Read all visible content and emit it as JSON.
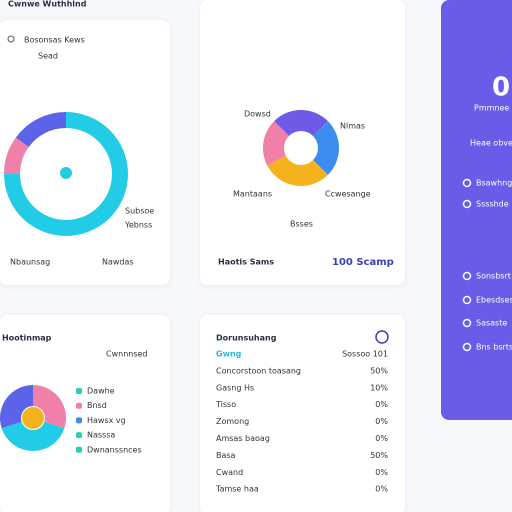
{
  "header": {
    "title": "Cwnwe Wuthhlnd"
  },
  "card1": {
    "title": "Bosonsas Kews",
    "subtitle": "Sead",
    "donut": [
      {
        "value": 75,
        "color": "#22cbe6"
      },
      {
        "value": 10,
        "color": "#f07fa9"
      },
      {
        "value": 15,
        "color": "#5b63e8"
      }
    ],
    "labels": [
      "Subsoe",
      "Yebnss"
    ],
    "footer_left": "Nbaunsag",
    "footer_right": "Nawdas"
  },
  "card2": {
    "donut": [
      {
        "value": 25,
        "color": "#6d5ae6"
      },
      {
        "value": 25,
        "color": "#3d8cf0"
      },
      {
        "value": 30,
        "color": "#f6b21c"
      },
      {
        "value": 20,
        "color": "#f07fa9"
      }
    ],
    "labels": [
      "Dowsd",
      "Nlmas",
      "Mantaans",
      "Ccwesange",
      "Bsses"
    ],
    "footer_left": "Haotis Sams",
    "footer_right": "100 Scamp"
  },
  "panel": {
    "big": "0",
    "title": "Pmmnee",
    "line": "Heae obvessy",
    "items": [
      "Bsawhng Hs",
      "Sssshde",
      "Sonsbsrt bs",
      "Ebesdsesy",
      "Sasaste",
      "Bns bsrtsa"
    ]
  },
  "card3": {
    "title": "Hootinmap",
    "action": "Cwnnnsed",
    "donut": [
      {
        "value": 30,
        "color": "#f07fa9"
      },
      {
        "value": 40,
        "color": "#22cbe6"
      },
      {
        "value": 30,
        "color": "#5b63e8"
      }
    ],
    "legend": [
      {
        "name": "Dawhe",
        "color": "#27cfb0"
      },
      {
        "name": "Bnsd",
        "color": "#f07fa9"
      },
      {
        "name": "Hawsx vg",
        "color": "#3d8cf0"
      },
      {
        "name": "Nasssa",
        "color": "#27cfb0"
      },
      {
        "name": "Dwnanssnces",
        "color": "#27cfb0"
      }
    ]
  },
  "card4": {
    "title": "Dorunsuhang",
    "rows": [
      [
        "Gwng",
        "Sossoo 101"
      ],
      [
        "Concorstoon toasang",
        "50%"
      ],
      [
        "Gasng Hs",
        "10%"
      ],
      [
        "Tisso",
        "0%"
      ],
      [
        "Zomong",
        "0%"
      ],
      [
        "Amsas baoag",
        "0%"
      ],
      [
        "Basa",
        "50%"
      ],
      [
        "Cwand",
        "0%"
      ],
      [
        "Tamse haa",
        "0%"
      ]
    ]
  }
}
